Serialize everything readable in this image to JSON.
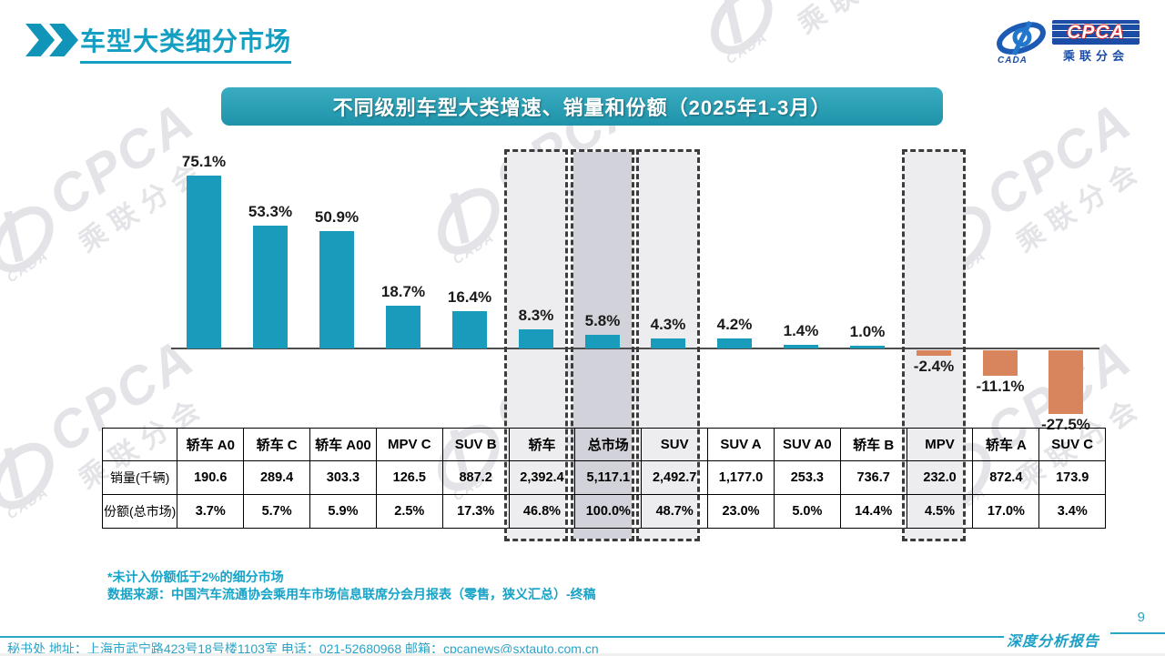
{
  "page": {
    "title": "车型大类细分市场",
    "page_number": "9",
    "report_label": "深度分析报告",
    "footer": "秘书处  地址：上海市武宁路423号18号楼1103室  电话：021-52680968   邮箱：cpcanews@sxtauto.com.cn"
  },
  "logo": {
    "cpca": "CPCA",
    "cada": "CADA",
    "sub": "乘联分会"
  },
  "watermark": {
    "cpca": "CPCA",
    "sub": "乘联分会",
    "cada": "CADA"
  },
  "colors": {
    "accent_teal": "#129fc2",
    "positive_bar": "#199cbc",
    "negative_bar": "#d8855e",
    "titlebar_top": "#3aacc1",
    "titlebar_bottom": "#1e93a9",
    "highlight_fill": "#ededef",
    "emphasis_fill": "#d2d2da"
  },
  "chart": {
    "title": "不同级别车型大类增速、销量和份额（2025年1-3月）",
    "footnote1": "*未计入份额低于2%的细分市场",
    "footnote2": "数据来源：中国汽车流通协会乘用车市场信息联席分会月报表（零售，狭义汇总）-终稿"
  },
  "chart_data": {
    "type": "bar",
    "title": "不同级别车型大类增速、销量和份额（2025年1-3月）",
    "categories": [
      "轿车 A0",
      "轿车 C",
      "轿车 A00",
      "MPV C",
      "SUV B",
      "轿车",
      "总市场",
      "SUV",
      "SUV A",
      "SUV A0",
      "轿车 B",
      "MPV",
      "轿车 A",
      "SUV C"
    ],
    "values": [
      75.1,
      53.3,
      50.9,
      18.7,
      16.4,
      8.3,
      5.8,
      4.3,
      4.2,
      1.4,
      1.0,
      -2.4,
      -11.1,
      -27.5
    ],
    "value_labels": [
      "75.1%",
      "53.3%",
      "50.9%",
      "18.7%",
      "16.4%",
      "8.3%",
      "5.8%",
      "4.3%",
      "4.2%",
      "1.4%",
      "1.0%",
      "-2.4%",
      "-11.1%",
      "-27.5%"
    ],
    "highlight_indices": [
      5,
      6,
      7,
      11
    ],
    "emphasis_index": 6,
    "ylim": [
      -30,
      80
    ],
    "grid": false,
    "legend": "none",
    "series": [
      {
        "name": "增速",
        "values": [
          75.1,
          53.3,
          50.9,
          18.7,
          16.4,
          8.3,
          5.8,
          4.3,
          4.2,
          1.4,
          1.0,
          -2.4,
          -11.1,
          -27.5
        ]
      },
      {
        "name": "销量(千辆)",
        "values": [
          190.6,
          289.4,
          303.3,
          126.5,
          887.2,
          2392.4,
          5117.1,
          2492.7,
          1177.0,
          253.3,
          736.7,
          232.0,
          872.4,
          173.9
        ]
      },
      {
        "name": "份额(总市场)",
        "values": [
          3.7,
          5.7,
          5.9,
          2.5,
          17.3,
          46.8,
          100.0,
          48.7,
          23.0,
          5.0,
          14.4,
          4.5,
          17.0,
          3.4
        ]
      }
    ]
  },
  "table": {
    "headers": [
      "轿车 A0",
      "轿车 C",
      "轿车 A00",
      "MPV C",
      "SUV B",
      "轿车",
      "总市场",
      "SUV",
      "SUV A",
      "SUV A0",
      "轿车 B",
      "MPV",
      "轿车 A",
      "SUV C"
    ],
    "row_labels": [
      "销量(千辆)",
      "份额(总市场)"
    ],
    "sales": [
      "190.6",
      "289.4",
      "303.3",
      "126.5",
      "887.2",
      "2,392.4",
      "5,117.1",
      "2,492.7",
      "1,177.0",
      "253.3",
      "736.7",
      "232.0",
      "872.4",
      "173.9"
    ],
    "share": [
      "3.7%",
      "5.7%",
      "5.9%",
      "2.5%",
      "17.3%",
      "46.8%",
      "100.0%",
      "48.7%",
      "23.0%",
      "5.0%",
      "14.4%",
      "4.5%",
      "17.0%",
      "3.4%"
    ]
  }
}
